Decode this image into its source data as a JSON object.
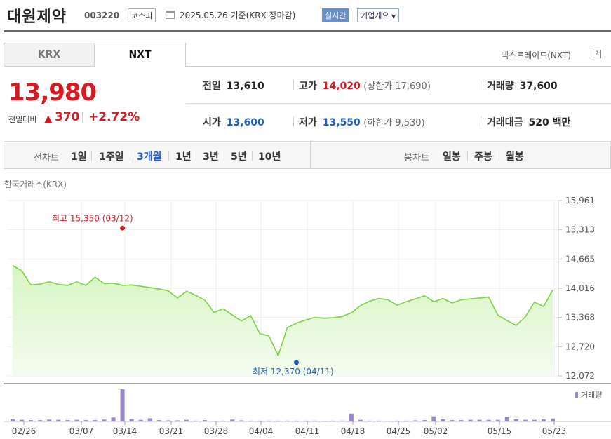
{
  "header": {
    "name": "대원제약",
    "code": "003220",
    "market": "코스피",
    "date": "2025.05.26",
    "basis": "기준(KRX 장마감)",
    "realtime_label": "실시간",
    "company_info_label": "기업개요"
  },
  "tabs": [
    "KRX",
    "NXT"
  ],
  "active_tab": "NXT",
  "nxt_label": "넥스트레이드(NXT)",
  "price": {
    "current": "13,980",
    "prev_label": "전일대비",
    "change": "370",
    "change_pct": "+2.72%"
  },
  "stats": {
    "prev_close": {
      "label": "전일",
      "value": "13,610"
    },
    "high": {
      "label": "고가",
      "value": "14,020",
      "sub": "(상한가 17,690)"
    },
    "volume": {
      "label": "거래량",
      "value": "37,600"
    },
    "open": {
      "label": "시가",
      "value": "13,600"
    },
    "low": {
      "label": "저가",
      "value": "13,550",
      "sub": "(하한가 9,530)"
    },
    "amount": {
      "label": "거래대금",
      "value": "520 백만"
    }
  },
  "periods": {
    "line_label": "선차트",
    "line_items": [
      "1일",
      "1주일",
      "3개월",
      "1년",
      "3년",
      "5년",
      "10년"
    ],
    "selected": "3개월",
    "candle_label": "봉차트",
    "candle_items": [
      "일봉",
      "주봉",
      "월봉"
    ]
  },
  "exchange_label": "한국거래소(KRX)",
  "colors": {
    "up": "#d71a21",
    "down": "#1d5fb8",
    "line": "#7cd33f",
    "fill": "#e5f8d6",
    "volume": "#9a88c8"
  },
  "chart_data": {
    "type": "area",
    "y_ticks": [
      "15,961",
      "15,313",
      "14,665",
      "14,016",
      "13,368",
      "12,720",
      "12,072"
    ],
    "ylim": [
      12072,
      15961
    ],
    "x_ticks": [
      "02/26",
      "03/07",
      "03/14",
      "03/21",
      "03/28",
      "04/04",
      "04/11",
      "04/18",
      "04/25",
      "05/02",
      "05/15",
      "05/23"
    ],
    "values": [
      14520,
      14400,
      14090,
      14110,
      14160,
      14100,
      14080,
      14160,
      14080,
      14260,
      14120,
      14130,
      14080,
      14090,
      14060,
      14030,
      14000,
      13960,
      13800,
      13950,
      13860,
      13750,
      13480,
      13560,
      13420,
      13290,
      13410,
      13010,
      12960,
      12520,
      13140,
      13240,
      13310,
      13370,
      13350,
      13360,
      13390,
      13470,
      13630,
      13730,
      13790,
      13760,
      13640,
      13720,
      13780,
      13850,
      13720,
      13790,
      13690,
      13760,
      13780,
      13800,
      13820,
      13420,
      13300,
      13190,
      13380,
      13710,
      13610,
      13980
    ],
    "volumes": [
      1.0,
      0.6,
      0.5,
      0.5,
      0.7,
      0.6,
      0.5,
      0.6,
      0.5,
      0.5,
      0.7,
      1.5,
      12.0,
      0.9,
      0.6,
      1.2,
      0.5,
      0.4,
      0.4,
      0.6,
      0.3,
      0.5,
      0.2,
      0.3,
      0.7,
      0.4,
      0.3,
      0.3,
      0.3,
      0.3,
      0.3,
      0.3,
      0.3,
      0.3,
      0.2,
      0.3,
      0.3,
      2.9,
      0.6,
      0.3,
      0.3,
      0.2,
      0.3,
      0.3,
      0.4,
      0.5,
      1.9,
      0.8,
      0.5,
      0.5,
      0.6,
      0.6,
      0.6,
      0.6,
      1.6,
      0.8,
      0.6,
      0.6,
      0.8,
      1.1
    ],
    "high_label": "최고 15,350 (03/12)",
    "high_value": 15350,
    "high_index": 12,
    "low_label": "최저 12,370 (04/11)",
    "low_value": 12370,
    "low_index": 29,
    "volume_label": "거래량"
  }
}
